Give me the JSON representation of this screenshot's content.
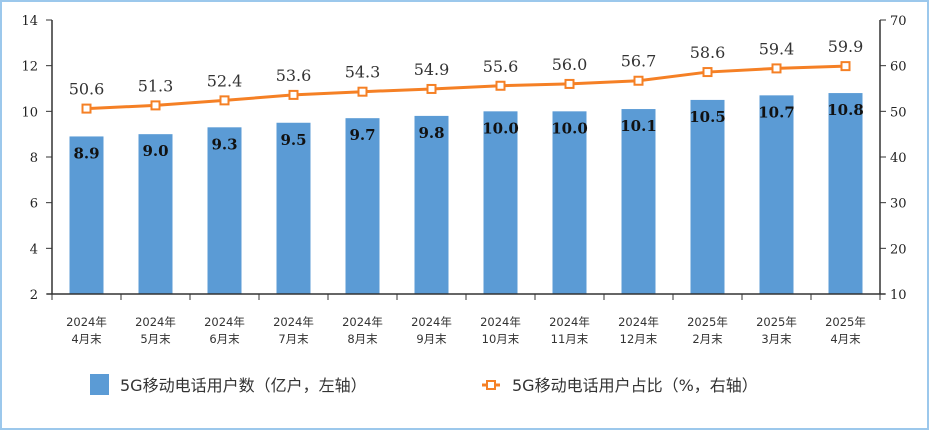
{
  "chart_data": {
    "type": "bar+line",
    "categories": [
      [
        "2024年",
        "4月末"
      ],
      [
        "2024年",
        "5月末"
      ],
      [
        "2024年",
        "6月末"
      ],
      [
        "2024年",
        "7月末"
      ],
      [
        "2024年",
        "8月末"
      ],
      [
        "2024年",
        "9月末"
      ],
      [
        "2024年",
        "10月末"
      ],
      [
        "2024年",
        "11月末"
      ],
      [
        "2024年",
        "12月末"
      ],
      [
        "2025年",
        "2月末"
      ],
      [
        "2025年",
        "3月末"
      ],
      [
        "2025年",
        "4月末"
      ]
    ],
    "series": [
      {
        "name": "5G移动电话用户数（亿户，左轴）",
        "type": "bar",
        "axis": "left",
        "color": "#5b9bd5",
        "values": [
          8.9,
          9.0,
          9.3,
          9.5,
          9.7,
          9.8,
          10.0,
          10.0,
          10.1,
          10.5,
          10.7,
          10.8
        ],
        "labels": [
          "8.9",
          "9.0",
          "9.3",
          "9.5",
          "9.7",
          "9.8",
          "10.0",
          "10.0",
          "10.1",
          "10.5",
          "10.7",
          "10.8"
        ]
      },
      {
        "name": "5G移动电话用户占比（%，右轴）",
        "type": "line",
        "axis": "right",
        "color": "#f58025",
        "values": [
          50.6,
          51.3,
          52.4,
          53.6,
          54.3,
          54.9,
          55.6,
          56.0,
          56.7,
          58.6,
          59.4,
          59.9
        ],
        "labels": [
          "50.6",
          "51.3",
          "52.4",
          "53.6",
          "54.3",
          "54.9",
          "55.6",
          "56.0",
          "56.7",
          "58.6",
          "59.4",
          "59.9"
        ]
      }
    ],
    "y_left": {
      "range": [
        2,
        14
      ],
      "ticks": [
        "2",
        "4",
        "6",
        "8",
        "10",
        "12",
        "14"
      ]
    },
    "y_right": {
      "range": [
        10,
        70
      ],
      "ticks": [
        "10",
        "20",
        "30",
        "40",
        "50",
        "60",
        "70"
      ]
    },
    "grid": false,
    "legend": "bottom"
  }
}
